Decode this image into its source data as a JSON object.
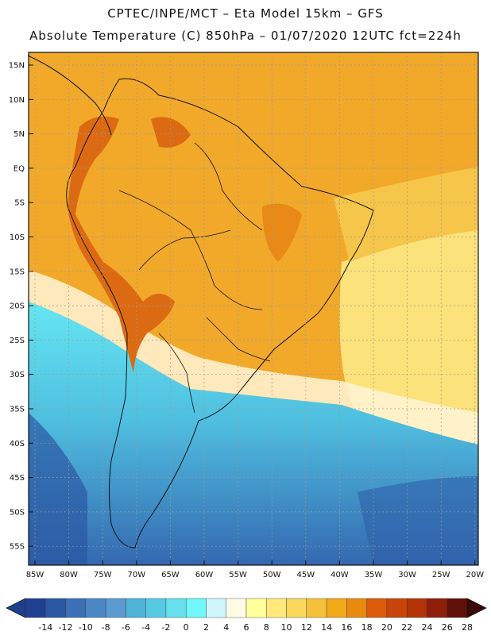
{
  "header": {
    "line1": "CPTEC/INPE/MCT –  Eta Model 15km – GFS",
    "line2": "Absolute Temperature (C) 850hPa – 01/07/2020 12UTC fct=224h"
  },
  "axes": {
    "lat_labels": [
      "15N",
      "10N",
      "5N",
      "EQ",
      "5S",
      "10S",
      "15S",
      "20S",
      "25S",
      "30S",
      "35S",
      "40S",
      "45S",
      "50S",
      "55S"
    ],
    "lon_labels": [
      "85W",
      "80W",
      "75W",
      "70W",
      "65W",
      "60W",
      "55W",
      "50W",
      "45W",
      "40W",
      "35W",
      "30W",
      "25W",
      "20W"
    ]
  },
  "colorbar": {
    "labels": [
      "-14",
      "-12",
      "-10",
      "-8",
      "-6",
      "-4",
      "-2",
      "0",
      "2",
      "4",
      "6",
      "8",
      "10",
      "12",
      "14",
      "16",
      "18",
      "20",
      "22",
      "24",
      "26",
      "28"
    ],
    "colors": [
      "#1f3f8f",
      "#2b57a3",
      "#3d6fb7",
      "#4d86c4",
      "#5b9bcf",
      "#4fb4d6",
      "#55cbe3",
      "#66dfee",
      "#6ff7fa",
      "#cdf6fb",
      "#fffae6",
      "#ffff9a",
      "#ffe97a",
      "#fad85c",
      "#f4c13a",
      "#f2a919",
      "#e88a10",
      "#dd5a09",
      "#c94408",
      "#b33207",
      "#8e1f0b",
      "#5f1008"
    ]
  },
  "map_colors": {
    "ocean_deep": "#3d7dc6",
    "ocean_mid": "#55c3e0",
    "ocean_cyan": "#66e6f2",
    "cold_land": "#5bc8e0",
    "pale": "#fff4d6",
    "yellow": "#fbe27a",
    "gold": "#f6c64a",
    "orange": "#f2a92a",
    "dark_orange": "#e88a15",
    "hot": "#dc6a12",
    "hottest": "#c44b0a"
  }
}
